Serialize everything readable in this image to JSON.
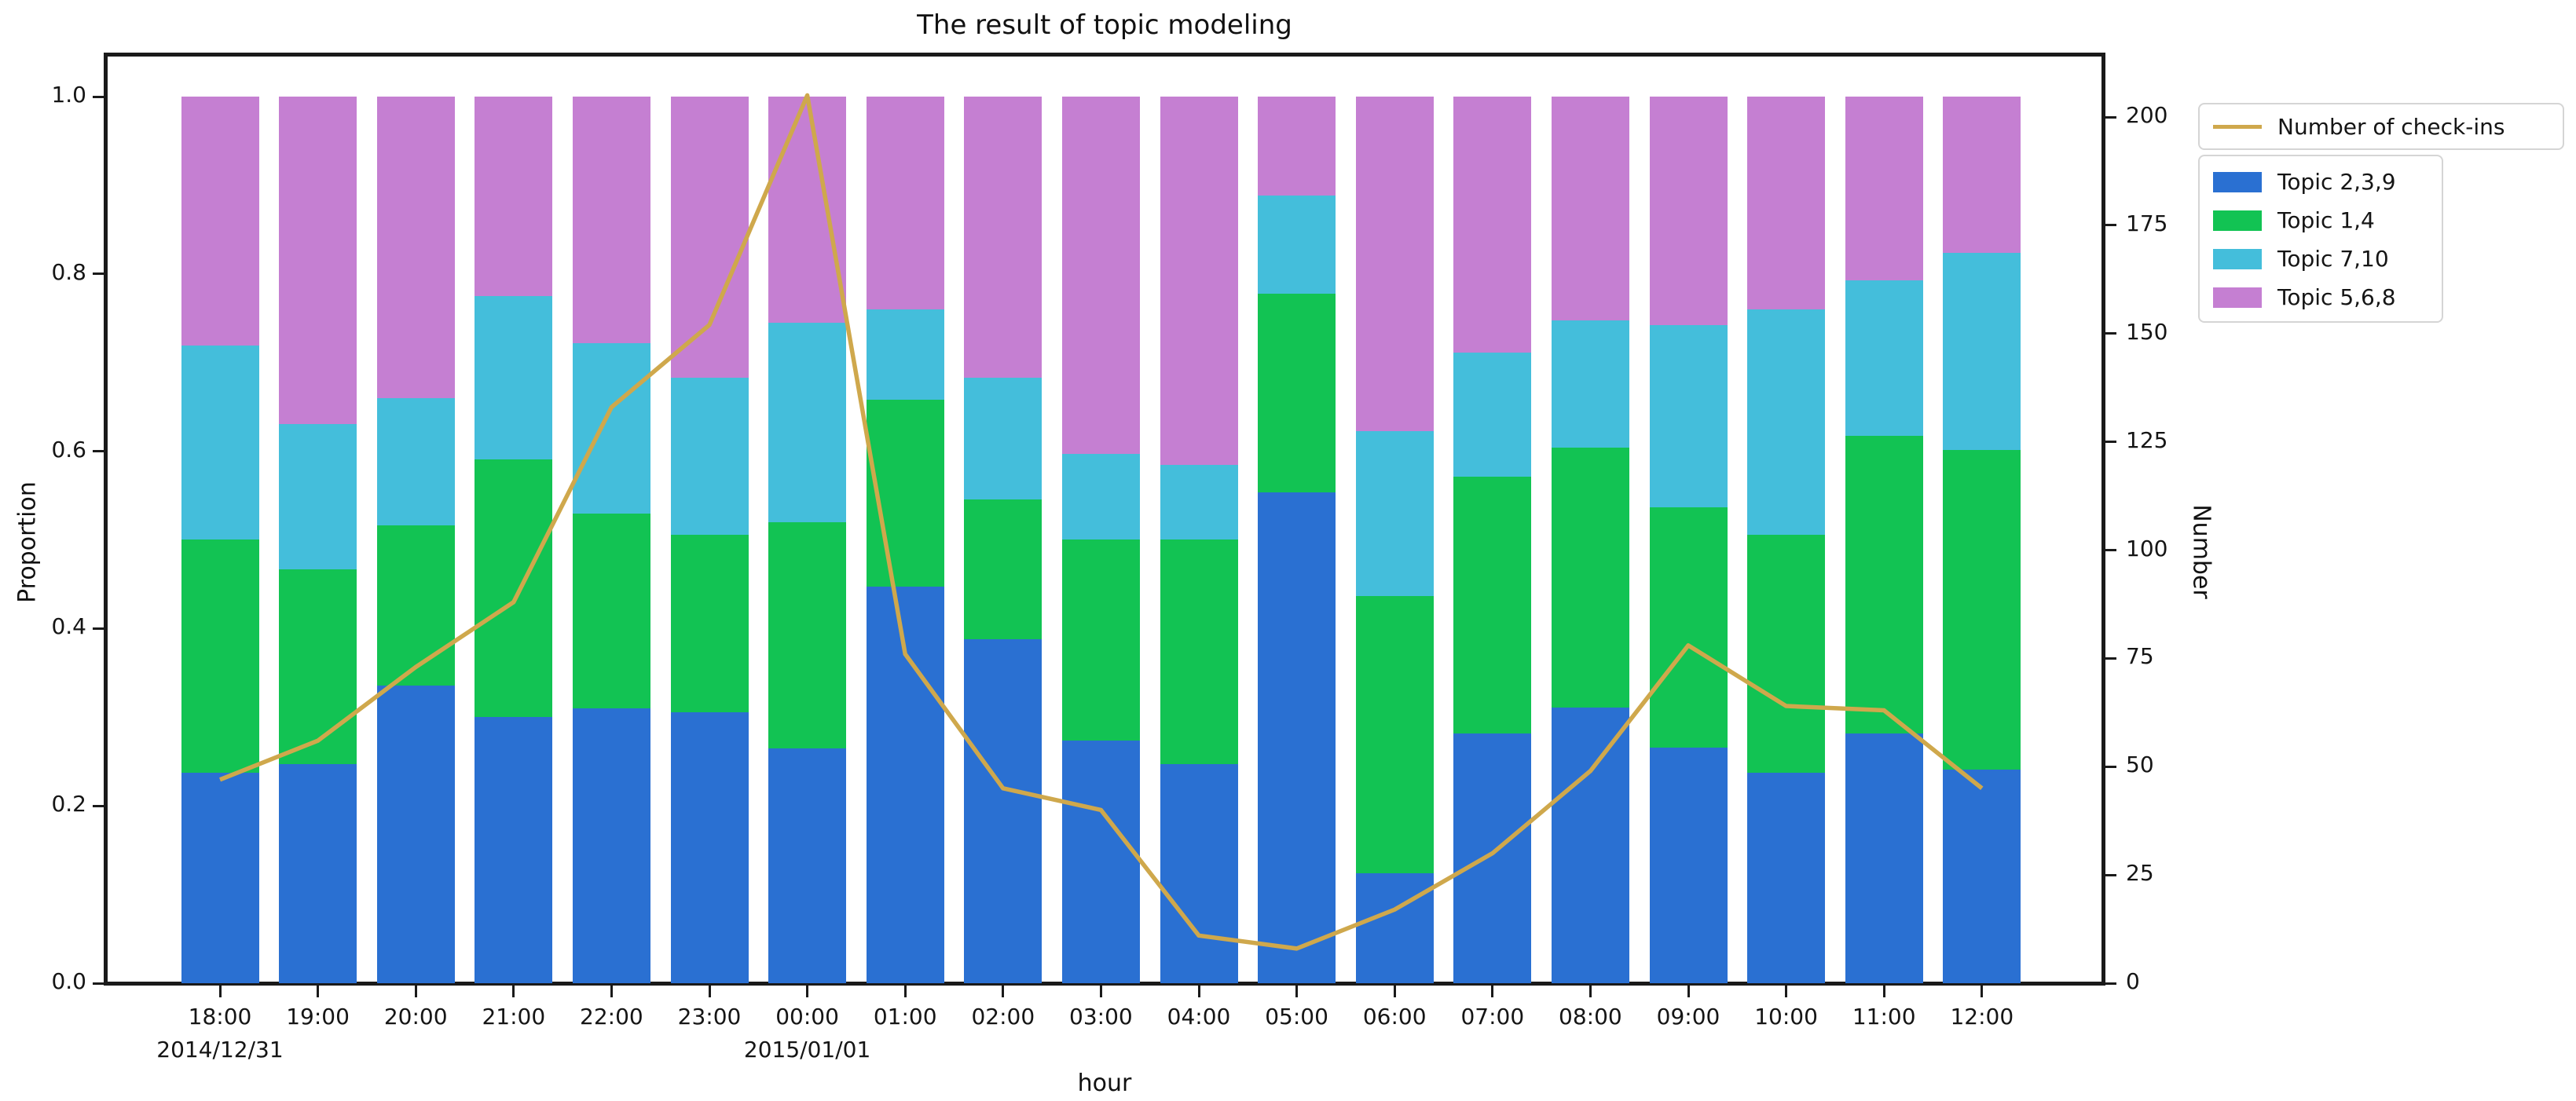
{
  "chart_data": {
    "type": "bar",
    "subtype": "stacked-bar-with-line-overlay",
    "title": "The result of topic modeling",
    "xlabel": "hour",
    "ylabel_left": "Proportion",
    "ylabel_right": "Number",
    "categories": [
      "18:00",
      "19:00",
      "20:00",
      "21:00",
      "22:00",
      "23:00",
      "00:00",
      "01:00",
      "02:00",
      "03:00",
      "04:00",
      "05:00",
      "06:00",
      "07:00",
      "08:00",
      "09:00",
      "10:00",
      "11:00",
      "12:00"
    ],
    "category_sublabels": {
      "0": "2014/12/31",
      "6": "2015/01/01"
    },
    "bar_series": [
      {
        "name": "Topic 2,3,9",
        "color": "#2a70d2",
        "values": [
          0.237,
          0.247,
          0.336,
          0.3,
          0.31,
          0.306,
          0.265,
          0.447,
          0.388,
          0.274,
          0.247,
          0.554,
          0.124,
          0.282,
          0.311,
          0.266,
          0.237,
          0.282,
          0.241
        ]
      },
      {
        "name": "Topic 1,4",
        "color": "#12c353",
        "values": [
          0.263,
          0.22,
          0.18,
          0.291,
          0.22,
          0.2,
          0.255,
          0.211,
          0.158,
          0.226,
          0.253,
          0.224,
          0.313,
          0.289,
          0.293,
          0.271,
          0.269,
          0.335,
          0.36
        ]
      },
      {
        "name": "Topic 7,10",
        "color": "#44bedb",
        "values": [
          0.219,
          0.164,
          0.144,
          0.184,
          0.192,
          0.177,
          0.225,
          0.102,
          0.137,
          0.097,
          0.085,
          0.11,
          0.186,
          0.14,
          0.144,
          0.205,
          0.254,
          0.176,
          0.223
        ]
      },
      {
        "name": "Topic 5,6,8",
        "color": "#c57fd2",
        "values": [
          0.281,
          0.369,
          0.34,
          0.225,
          0.278,
          0.317,
          0.255,
          0.24,
          0.317,
          0.403,
          0.415,
          0.112,
          0.377,
          0.289,
          0.252,
          0.258,
          0.24,
          0.207,
          0.176
        ]
      }
    ],
    "line_series": {
      "name": "Number of check-ins",
      "color": "#cfa84c",
      "values": [
        47,
        56,
        73,
        88,
        133,
        152,
        205,
        76,
        45,
        40,
        11,
        8,
        17,
        30,
        49,
        78,
        64,
        63,
        45
      ]
    },
    "y_left": {
      "ticks": [
        "0.0",
        "0.2",
        "0.4",
        "0.6",
        "0.8",
        "1.0"
      ],
      "min": 0.0,
      "max": 1.0
    },
    "y_right": {
      "ticks": [
        "0",
        "25",
        "50",
        "75",
        "100",
        "125",
        "150",
        "175",
        "200"
      ],
      "min": 0,
      "max": 200
    },
    "axis_ranges": {
      "proportion": [
        0.0,
        1.0
      ],
      "number": [
        0,
        200
      ]
    },
    "grid": "off",
    "legend_position": "outside-right-top"
  }
}
